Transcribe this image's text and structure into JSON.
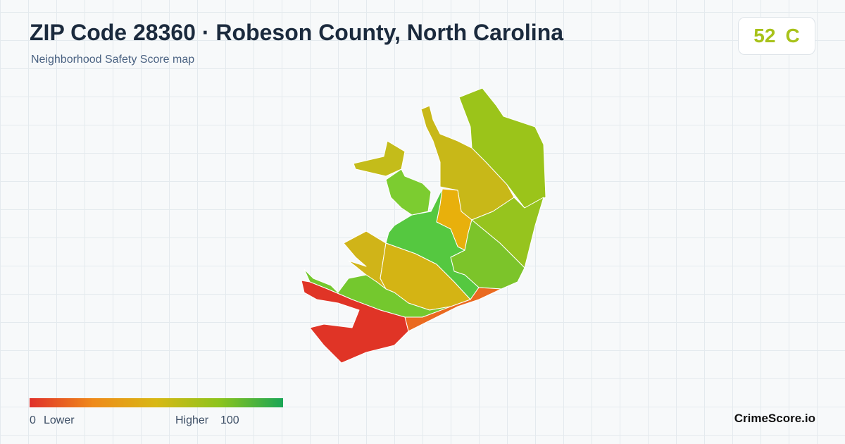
{
  "header": {
    "title": "ZIP Code 28360 · Robeson County, North Carolina",
    "subtitle": "Neighborhood Safety Score map"
  },
  "badge": {
    "score": 52,
    "grade": "C"
  },
  "legend": {
    "min": "0",
    "low_label": "Lower",
    "high_label": "Higher",
    "max": "100"
  },
  "brand": "CrimeScore.io"
}
